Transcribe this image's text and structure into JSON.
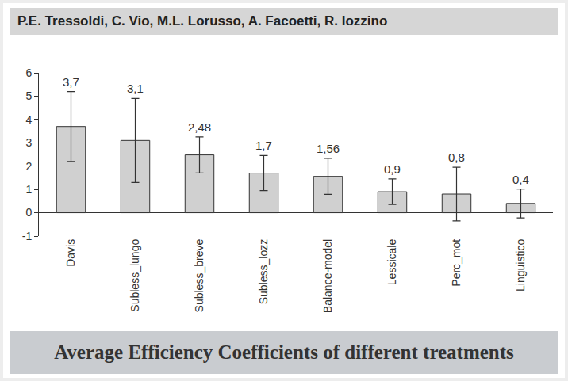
{
  "chart_data": {
    "type": "bar",
    "title": "Average Efficiency Coefficients of different treatments",
    "subtitle": "P.E. Tressoldi, C. Vio, M.L. Lorusso, A. Facoetti, R. Iozzino",
    "categories": [
      "Davis",
      "Subless_lungo",
      "Subless_breve",
      "Subless_lozz",
      "Balance-model",
      "Lessicale",
      "Perc_mot",
      "Linguistico"
    ],
    "values": [
      3.7,
      3.1,
      2.48,
      1.7,
      1.56,
      0.9,
      0.8,
      0.4
    ],
    "value_labels": [
      "3,7",
      "3,1",
      "2,48",
      "1,7",
      "1,56",
      "0,9",
      "0,8",
      "0,4"
    ],
    "errors": [
      1.5,
      1.8,
      0.77,
      0.75,
      0.77,
      0.55,
      1.15,
      0.62
    ],
    "color": "#d0d0d0",
    "ylim": [
      -1,
      6
    ],
    "yticks": [
      -1,
      0,
      1,
      2,
      3,
      4,
      5,
      6
    ],
    "grid": false,
    "data_labels": true
  }
}
